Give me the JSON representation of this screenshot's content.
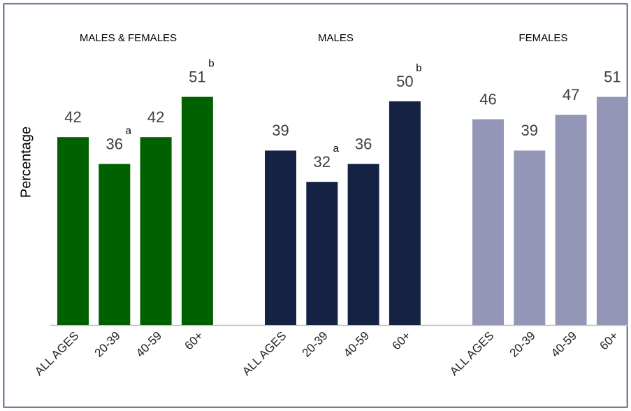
{
  "chart_data": {
    "type": "bar",
    "y_label": "Percentage",
    "categories": [
      "ALL AGES",
      "20-39",
      "40-59",
      "60+"
    ],
    "ylim": [
      0,
      70
    ],
    "series": [
      {
        "name": "MALES & FEMALES",
        "color": "#006100",
        "values": [
          42,
          36,
          42,
          51
        ],
        "annotations": [
          null,
          "a",
          null,
          "b"
        ]
      },
      {
        "name": "MALES",
        "color": "#152244",
        "values": [
          39,
          32,
          36,
          50
        ],
        "annotations": [
          null,
          "a",
          null,
          "b"
        ]
      },
      {
        "name": "FEMALES",
        "color": "#9396b6",
        "values": [
          46,
          39,
          47,
          51
        ]
      }
    ]
  }
}
